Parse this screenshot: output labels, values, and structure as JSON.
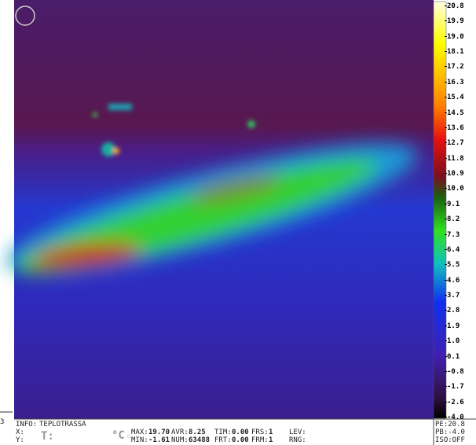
{
  "colorbar": {
    "labels": [
      "20.8",
      "19.9",
      "19.0",
      "18.1",
      "17.2",
      "16.3",
      "15.4",
      "14.5",
      "13.6",
      "12.7",
      "11.8",
      "10.9",
      "10.0",
      "9.1",
      "8.2",
      "7.3",
      "6.4",
      "5.5",
      "4.6",
      "3.7",
      "2.8",
      "1.9",
      "1.0",
      "0.1",
      "-0.8",
      "-1.7",
      "-2.6",
      "-4.0"
    ]
  },
  "left_marker": "3",
  "status": {
    "info_label": "INFO:",
    "info": "TEPLOTRASSA",
    "x_label": "X:",
    "y_label": "Y:",
    "t_label": "T:",
    "unit": "°C",
    "fields": [
      {
        "label": "MAX:",
        "value": "19.70"
      },
      {
        "label": "AVR:",
        "value": "8.25"
      },
      {
        "label": "TIM:",
        "value": "0.00"
      },
      {
        "label": "FRS:",
        "value": "1"
      },
      {
        "label": "LEV:",
        "value": ""
      },
      {
        "label": "MIN:",
        "value": "-1.61"
      },
      {
        "label": "NUM:",
        "value": "63488"
      },
      {
        "label": "FRT:",
        "value": "0.00"
      },
      {
        "label": "FRM:",
        "value": "1"
      },
      {
        "label": "RNG:",
        "value": ""
      }
    ],
    "right": [
      "PE:20.8",
      "PB:-4.0",
      "ISO:OFF"
    ]
  }
}
